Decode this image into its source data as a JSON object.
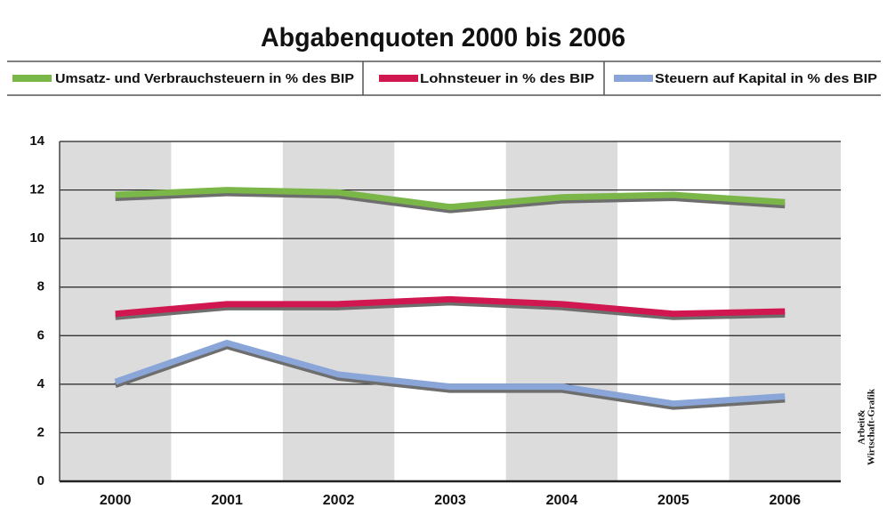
{
  "chart_data": {
    "type": "line",
    "title": "Abgabenquoten 2000 bis 2006",
    "categories": [
      "2000",
      "2001",
      "2002",
      "2003",
      "2004",
      "2005",
      "2006"
    ],
    "series": [
      {
        "name": "Umsatz- und Verbrauchsteuern in % des BIP",
        "color": "#7ab648",
        "values": [
          11.8,
          12.0,
          11.9,
          11.3,
          11.7,
          11.8,
          11.5
        ]
      },
      {
        "name": "Lohnsteuer in % des BIP",
        "color": "#d0174f",
        "values": [
          6.9,
          7.3,
          7.3,
          7.5,
          7.3,
          6.9,
          7.0
        ]
      },
      {
        "name": "Steuern auf Kapital in % des BIP",
        "color": "#8aa6d8",
        "values": [
          4.1,
          5.7,
          4.4,
          3.9,
          3.9,
          3.2,
          3.5
        ]
      }
    ],
    "ylim": [
      0,
      14
    ],
    "yticks": [
      0,
      2,
      4,
      6,
      8,
      10,
      12,
      14
    ],
    "grid": true,
    "credit": [
      "Arbeit&",
      "Wirtschaft-Grafik"
    ]
  }
}
